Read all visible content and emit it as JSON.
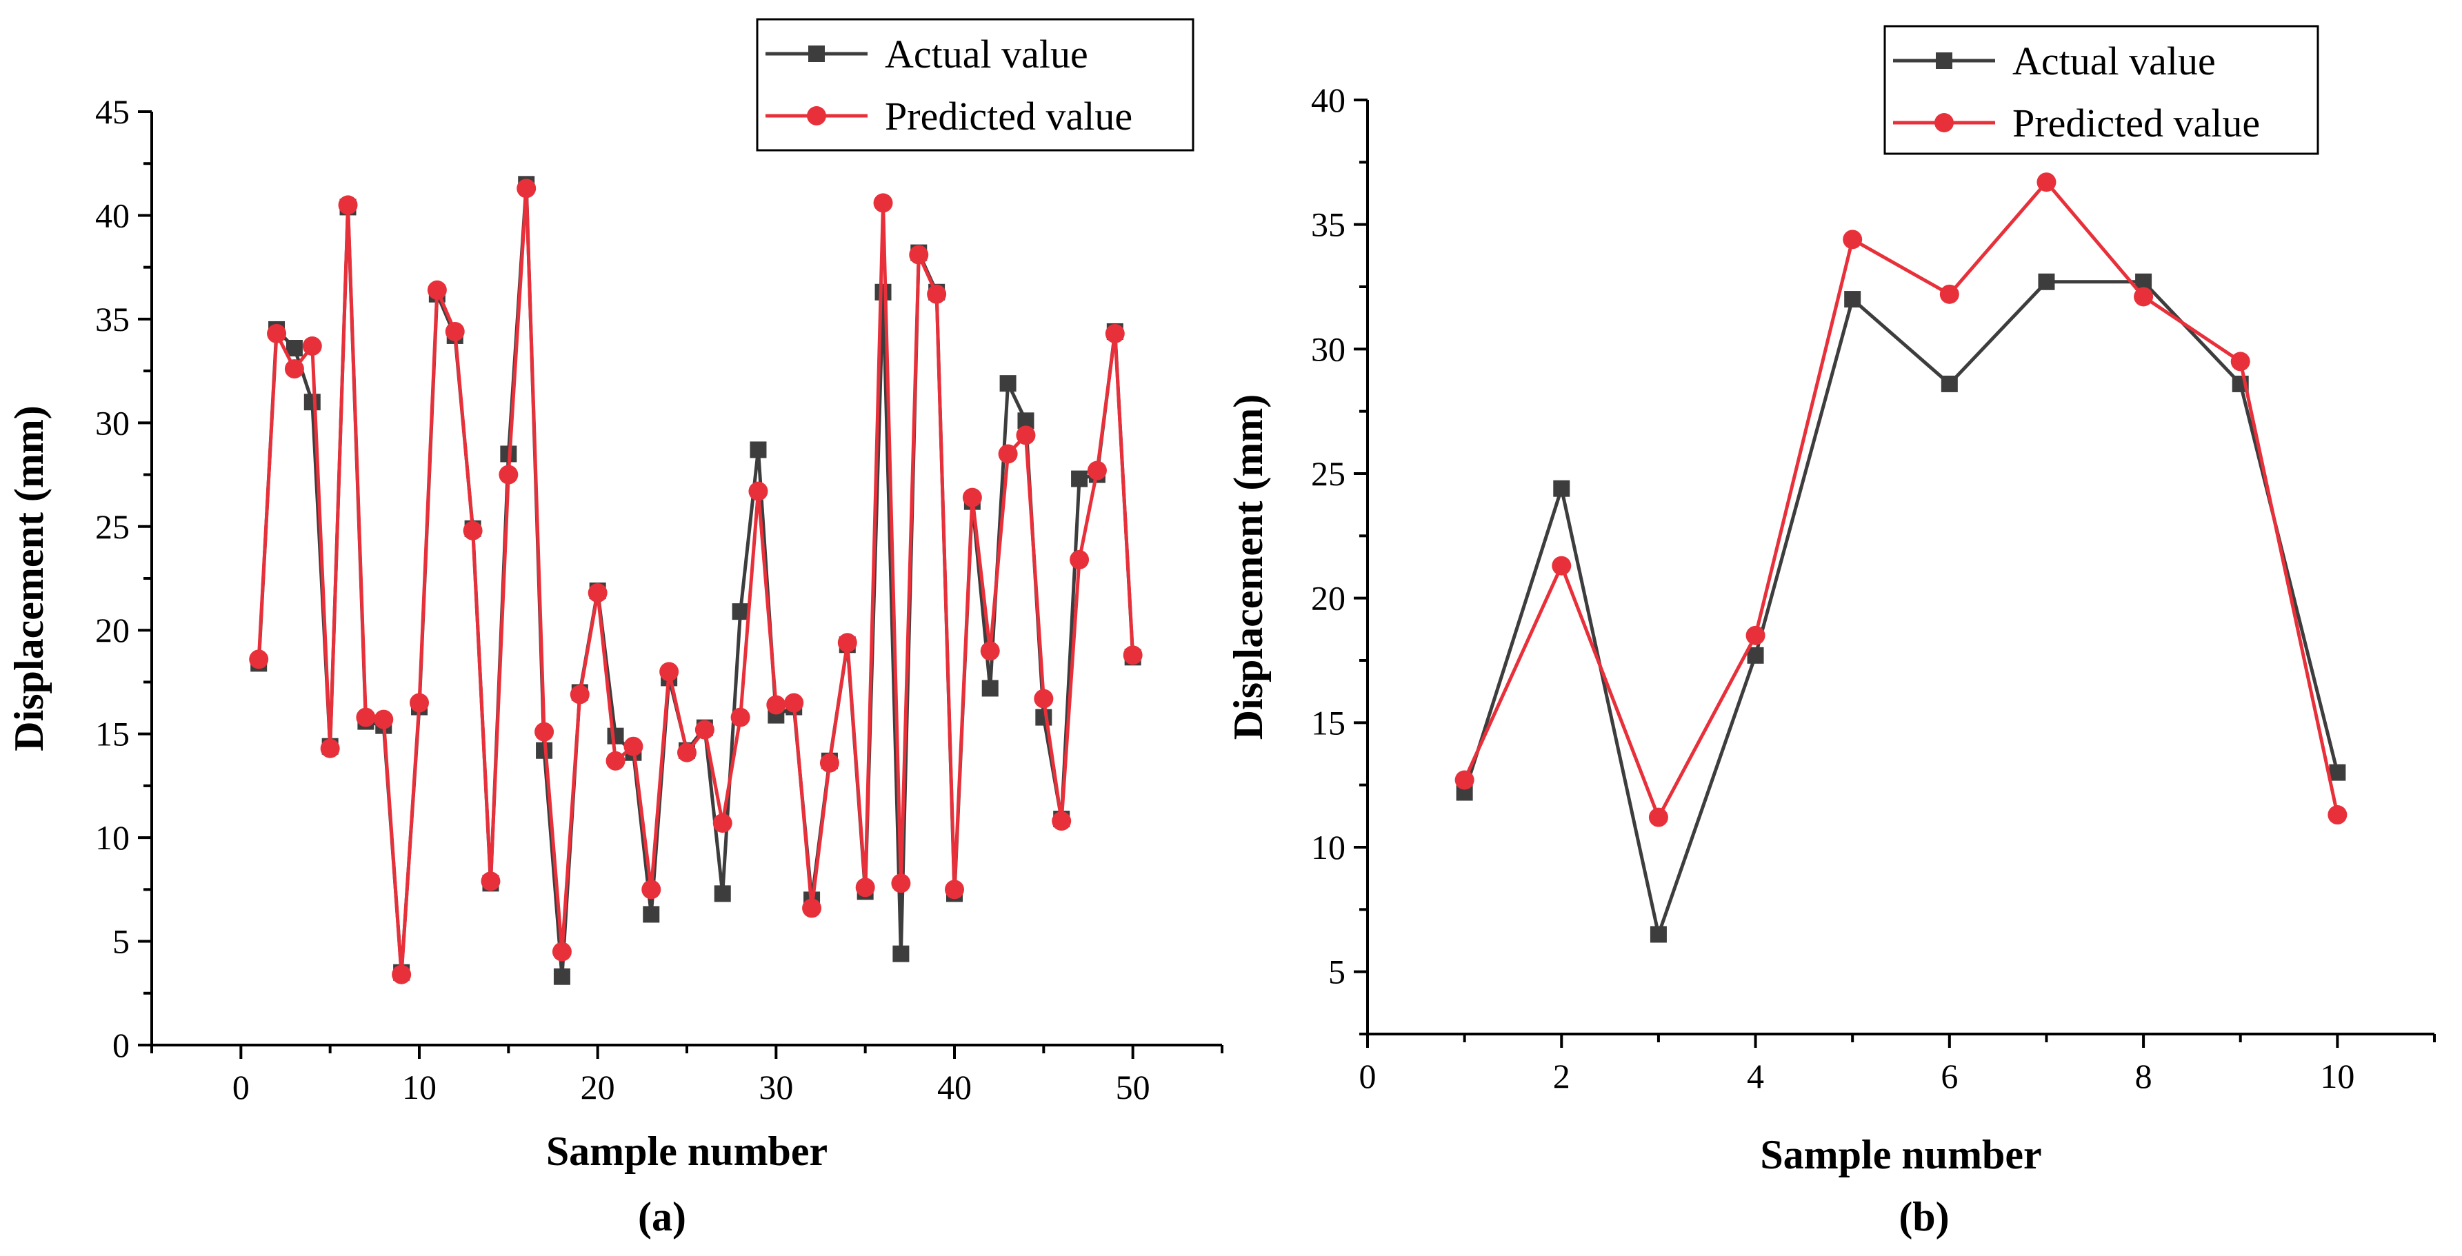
{
  "colors": {
    "actual": "#3d3d3d",
    "predicted": "#e8303a",
    "axis": "#000000"
  },
  "chart_data": [
    {
      "type": "line",
      "panel_label": "(a)",
      "xlabel": "Sample number",
      "ylabel": "Displacement (mm)",
      "xlim": [
        -5,
        55
      ],
      "ylim": [
        0,
        45
      ],
      "x_ticks": [
        0,
        10,
        20,
        30,
        40,
        50
      ],
      "y_ticks": [
        0,
        5,
        10,
        15,
        20,
        25,
        30,
        35,
        40,
        45
      ],
      "grid": false,
      "legend_position": "top-right",
      "x": [
        1,
        2,
        3,
        4,
        5,
        6,
        7,
        8,
        9,
        10,
        11,
        12,
        13,
        14,
        15,
        16,
        17,
        18,
        19,
        20,
        21,
        22,
        23,
        24,
        25,
        26,
        27,
        28,
        29,
        30,
        31,
        32,
        33,
        34,
        35,
        36,
        37,
        38,
        39,
        40,
        41,
        42,
        43,
        44,
        45,
        46,
        47,
        48,
        49,
        50
      ],
      "series": [
        {
          "name": "Actual value",
          "marker": "square",
          "values": [
            18.4,
            34.5,
            33.6,
            31.0,
            14.4,
            40.4,
            15.6,
            15.4,
            3.5,
            16.3,
            36.2,
            34.2,
            24.9,
            7.8,
            28.5,
            41.5,
            14.2,
            3.3,
            17.0,
            21.9,
            14.9,
            14.1,
            6.3,
            17.7,
            14.2,
            15.3,
            7.3,
            20.9,
            28.7,
            15.9,
            16.3,
            7.0,
            13.7,
            19.3,
            7.4,
            36.3,
            4.4,
            38.2,
            36.3,
            7.3,
            26.2,
            17.2,
            31.9,
            30.1,
            15.8,
            10.9,
            27.3,
            27.5,
            34.4,
            18.7
          ]
        },
        {
          "name": "Predicted value",
          "marker": "circle",
          "values": [
            18.6,
            34.3,
            32.6,
            33.7,
            14.3,
            40.5,
            15.8,
            15.7,
            3.4,
            16.5,
            36.4,
            34.4,
            24.8,
            7.9,
            27.5,
            41.3,
            15.1,
            4.5,
            16.9,
            21.8,
            13.7,
            14.4,
            7.5,
            18.0,
            14.1,
            15.2,
            10.7,
            15.8,
            26.7,
            16.4,
            16.5,
            6.6,
            13.6,
            19.4,
            7.6,
            40.6,
            7.8,
            38.1,
            36.2,
            7.5,
            26.4,
            19.0,
            28.5,
            29.4,
            16.7,
            10.8,
            23.4,
            27.7,
            34.3,
            18.8
          ]
        }
      ]
    },
    {
      "type": "line",
      "panel_label": "(b)",
      "xlabel": "Sample number",
      "ylabel": "Displacement (mm)",
      "xlim": [
        0,
        11
      ],
      "ylim": [
        2.5,
        40
      ],
      "x_ticks": [
        0,
        2,
        4,
        6,
        8,
        10
      ],
      "y_ticks": [
        5,
        10,
        15,
        20,
        25,
        30,
        35,
        40
      ],
      "grid": false,
      "legend_position": "top-right",
      "x": [
        1,
        2,
        3,
        4,
        5,
        6,
        7,
        8,
        9,
        10
      ],
      "series": [
        {
          "name": "Actual value",
          "marker": "square",
          "values": [
            12.2,
            24.4,
            6.5,
            17.7,
            32.0,
            28.6,
            32.7,
            32.7,
            28.6,
            13.0
          ]
        },
        {
          "name": "Predicted value",
          "marker": "circle",
          "values": [
            12.7,
            21.3,
            11.2,
            18.5,
            34.4,
            32.2,
            36.7,
            32.1,
            29.5,
            11.3
          ]
        }
      ]
    }
  ]
}
